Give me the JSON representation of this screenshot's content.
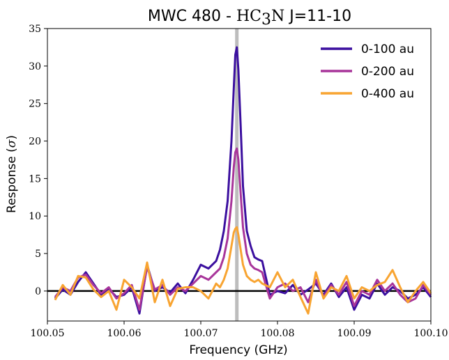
{
  "chart_data": {
    "type": "line",
    "title_prefix": "MWC 480 - ",
    "title_molecule": "HC",
    "title_sub": "3",
    "title_molecule_end": "N",
    "title_suffix": " J=11-10",
    "xlabel": "Frequency (GHz)",
    "ylabel_prefix": "Response (",
    "ylabel_symbol": "σ",
    "ylabel_suffix": ")",
    "xlim": [
      100.05,
      100.1
    ],
    "ylim": [
      -4,
      35
    ],
    "xticks": [
      "100.05",
      "100.06",
      "100.07",
      "100.08",
      "100.09",
      "100.10"
    ],
    "yticks": [
      "0",
      "5",
      "10",
      "15",
      "20",
      "25",
      "30",
      "35"
    ],
    "zero_line": 0,
    "rest_frequency": 100.0747,
    "legend_position": "top-right",
    "series": [
      {
        "name": "0-100 au",
        "color": "#3b0f9f",
        "x": [
          100.051,
          100.052,
          100.053,
          100.054,
          100.055,
          100.056,
          100.057,
          100.058,
          100.059,
          100.06,
          100.061,
          100.062,
          100.063,
          100.064,
          100.065,
          100.066,
          100.067,
          100.068,
          100.069,
          100.07,
          100.071,
          100.072,
          100.0725,
          100.073,
          100.0735,
          100.074,
          100.0743,
          100.0745,
          100.0747,
          100.0749,
          100.0752,
          100.0755,
          100.076,
          100.0765,
          100.077,
          100.0775,
          100.078,
          100.079,
          100.08,
          100.081,
          100.082,
          100.083,
          100.084,
          100.085,
          100.086,
          100.087,
          100.088,
          100.089,
          100.09,
          100.091,
          100.092,
          100.093,
          100.094,
          100.095,
          100.096,
          100.097,
          100.098,
          100.099,
          100.1
        ],
        "y": [
          -1.0,
          0.2,
          -0.5,
          1.2,
          2.5,
          1.0,
          -0.5,
          0.3,
          -0.8,
          -0.5,
          0.5,
          -3.0,
          3.5,
          0.0,
          0.5,
          -0.2,
          1.0,
          -0.3,
          1.5,
          3.5,
          3.0,
          4.0,
          5.5,
          8.0,
          12.0,
          20.0,
          27.0,
          31.5,
          32.5,
          29.5,
          22.0,
          14.0,
          8.0,
          6.0,
          4.5,
          4.2,
          4.0,
          -0.5,
          0.0,
          -0.3,
          0.8,
          -0.5,
          0.2,
          1.0,
          -0.5,
          1.0,
          -0.8,
          0.5,
          -2.5,
          -0.5,
          -1.0,
          1.0,
          -0.5,
          0.5,
          0.0,
          -1.0,
          -0.5,
          0.5,
          -0.8
        ]
      },
      {
        "name": "0-200 au",
        "color": "#a8359a",
        "x": [
          100.051,
          100.052,
          100.053,
          100.054,
          100.055,
          100.056,
          100.057,
          100.058,
          100.059,
          100.06,
          100.061,
          100.062,
          100.063,
          100.064,
          100.065,
          100.066,
          100.067,
          100.068,
          100.069,
          100.07,
          100.071,
          100.072,
          100.0725,
          100.073,
          100.0735,
          100.074,
          100.0743,
          100.0745,
          100.0747,
          100.0749,
          100.0752,
          100.0755,
          100.076,
          100.0765,
          100.077,
          100.0775,
          100.078,
          100.079,
          100.08,
          100.081,
          100.082,
          100.083,
          100.084,
          100.085,
          100.086,
          100.087,
          100.088,
          100.089,
          100.09,
          100.091,
          100.092,
          100.093,
          100.094,
          100.095,
          100.096,
          100.097,
          100.098,
          100.099,
          100.1
        ],
        "y": [
          -0.8,
          0.5,
          0.0,
          1.8,
          2.2,
          0.8,
          -0.3,
          0.5,
          -1.0,
          -0.3,
          0.8,
          -2.5,
          3.2,
          0.2,
          0.8,
          -0.5,
          0.5,
          0.0,
          1.0,
          2.0,
          1.5,
          2.5,
          3.0,
          4.5,
          7.0,
          12.0,
          16.5,
          18.5,
          19.0,
          17.5,
          13.0,
          8.5,
          5.0,
          3.5,
          3.0,
          2.8,
          2.5,
          -1.0,
          0.5,
          1.0,
          0.0,
          0.5,
          -1.5,
          1.5,
          -0.8,
          0.8,
          -0.5,
          1.2,
          -2.0,
          0.0,
          -0.5,
          1.5,
          0.0,
          1.0,
          -0.5,
          -1.5,
          -1.0,
          0.8,
          -0.5
        ]
      },
      {
        "name": "0-400 au",
        "color": "#f8a431",
        "x": [
          100.051,
          100.052,
          100.053,
          100.054,
          100.055,
          100.056,
          100.057,
          100.058,
          100.059,
          100.06,
          100.061,
          100.062,
          100.063,
          100.064,
          100.065,
          100.066,
          100.067,
          100.068,
          100.069,
          100.07,
          100.071,
          100.072,
          100.0725,
          100.073,
          100.0735,
          100.074,
          100.0743,
          100.0745,
          100.0747,
          100.0749,
          100.0752,
          100.0755,
          100.076,
          100.0765,
          100.077,
          100.0775,
          100.078,
          100.079,
          100.08,
          100.081,
          100.082,
          100.083,
          100.084,
          100.085,
          100.086,
          100.087,
          100.088,
          100.089,
          100.09,
          100.091,
          100.092,
          100.093,
          100.094,
          100.095,
          100.096,
          100.097,
          100.098,
          100.099,
          100.1
        ],
        "y": [
          -1.2,
          0.8,
          -0.5,
          2.0,
          1.8,
          0.2,
          -0.8,
          0.0,
          -2.5,
          1.5,
          0.5,
          -1.0,
          3.8,
          -1.5,
          1.5,
          -2.0,
          0.3,
          0.5,
          0.5,
          0.0,
          -1.0,
          1.0,
          0.5,
          1.5,
          3.0,
          6.0,
          7.8,
          8.3,
          8.5,
          7.5,
          5.5,
          3.5,
          2.0,
          1.5,
          1.2,
          1.5,
          1.0,
          0.5,
          2.5,
          0.5,
          1.5,
          -0.8,
          -3.0,
          2.5,
          -1.0,
          0.5,
          0.0,
          2.0,
          -1.0,
          0.5,
          0.0,
          0.8,
          1.2,
          2.8,
          0.5,
          -1.5,
          0.0,
          1.2,
          -0.3
        ]
      }
    ]
  }
}
